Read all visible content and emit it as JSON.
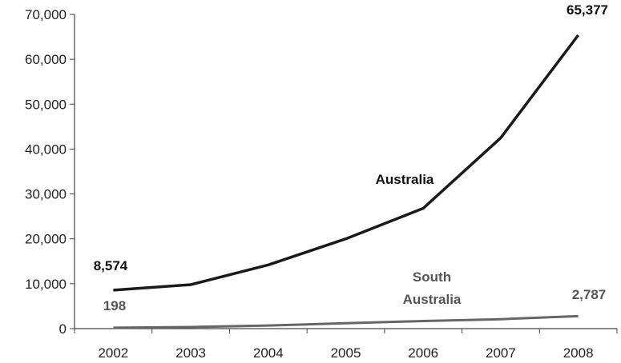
{
  "chart_data": {
    "type": "line",
    "categories": [
      "2002",
      "2003",
      "2004",
      "2005",
      "2006",
      "2007",
      "2008"
    ],
    "ylim": [
      0,
      70000
    ],
    "yticks": [
      "0",
      "10,000",
      "20,000",
      "30,000",
      "40,000",
      "50,000",
      "60,000",
      "70,000"
    ],
    "ytick_values": [
      0,
      10000,
      20000,
      30000,
      40000,
      50000,
      60000,
      70000
    ],
    "grid": false,
    "series": [
      {
        "name": "Australia",
        "color": "#1a1a1a",
        "values": [
          8574,
          9800,
          14200,
          20000,
          26800,
          42500,
          65377
        ],
        "labels": {
          "first": "8,574",
          "last": "65,377"
        }
      },
      {
        "name_lines": [
          "South",
          "Australia"
        ],
        "color": "#666666",
        "values": [
          198,
          350,
          700,
          1200,
          1700,
          2100,
          2787
        ],
        "labels": {
          "first": "198",
          "last": "2,787"
        }
      }
    ]
  }
}
